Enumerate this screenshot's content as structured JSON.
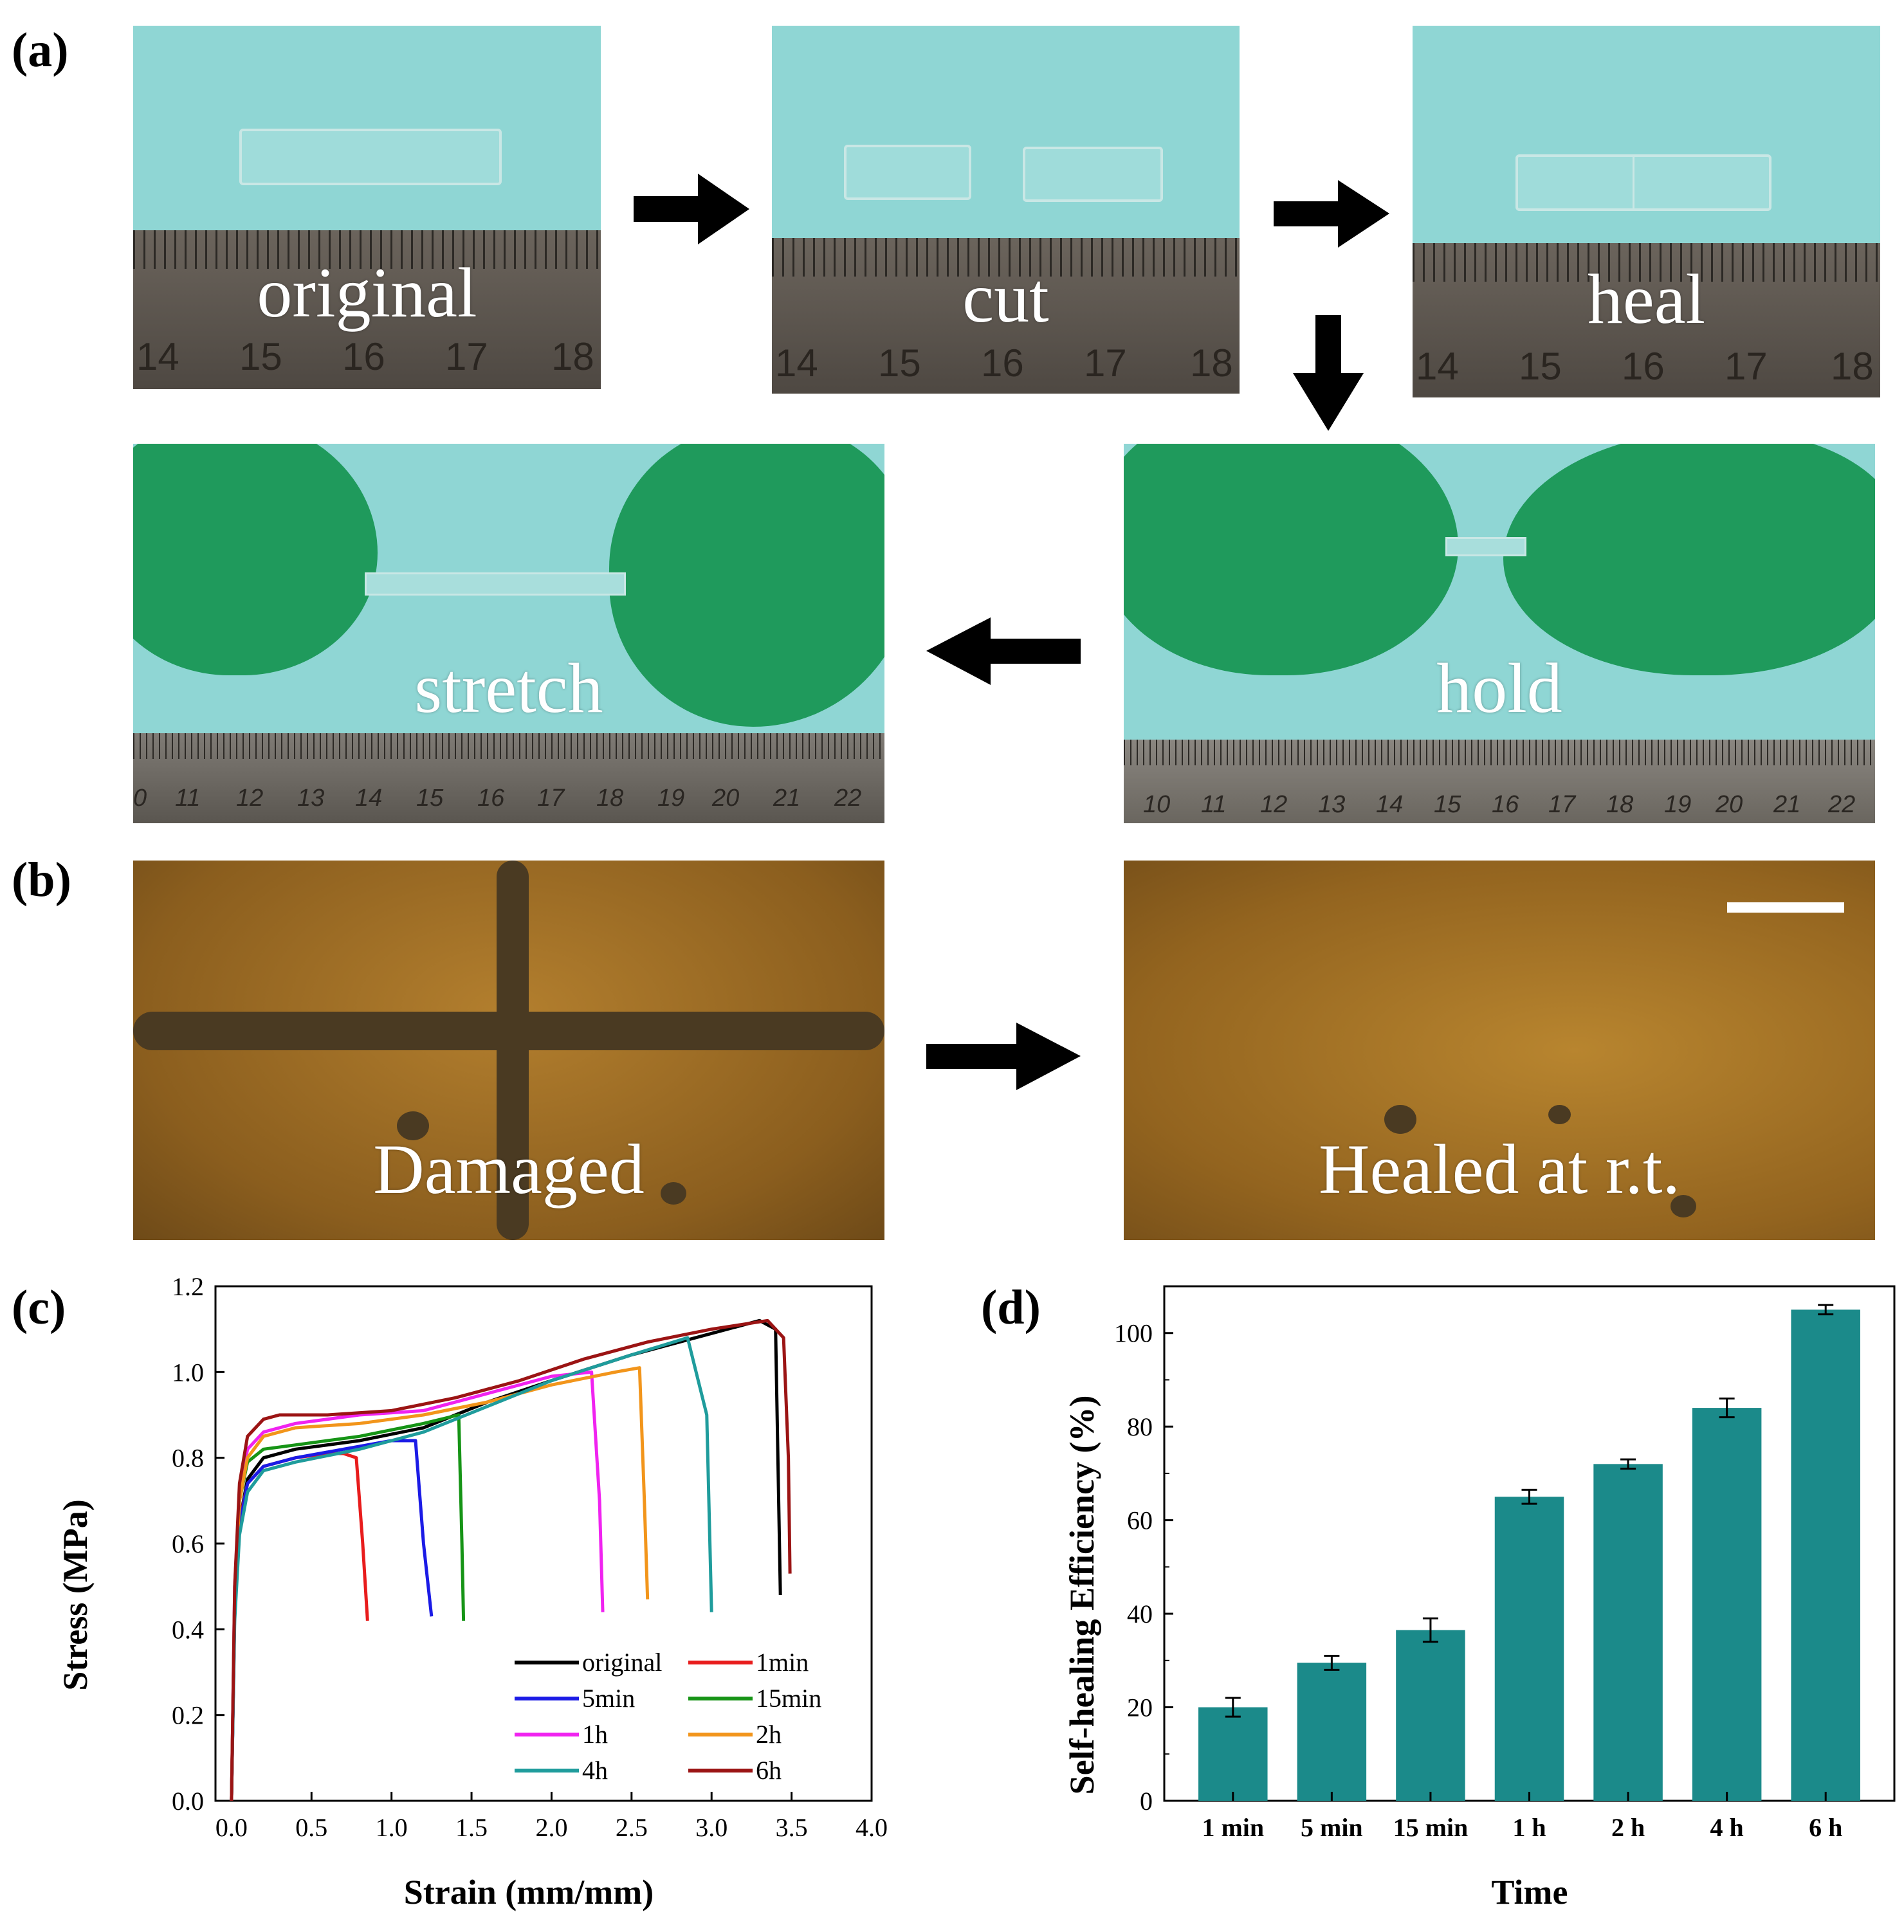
{
  "panel_labels": {
    "a": "(a)",
    "b": "(b)",
    "c": "(c)",
    "d": "(d)"
  },
  "panel_a": {
    "steps": [
      {
        "caption": "original",
        "ruler_numbers": [
          "14",
          "15",
          "16",
          "17",
          "18"
        ]
      },
      {
        "caption": "cut",
        "ruler_numbers": [
          "14",
          "15",
          "16",
          "17",
          "18"
        ]
      },
      {
        "caption": "heal",
        "ruler_numbers": [
          "14",
          "15",
          "16",
          "17",
          "18"
        ]
      },
      {
        "caption": "hold",
        "ruler_numbers": [
          "10",
          "11",
          "12",
          "13",
          "14",
          "15",
          "16",
          "17",
          "18",
          "19",
          "20",
          "21",
          "22"
        ]
      },
      {
        "caption": "stretch",
        "ruler_numbers": [
          "0",
          "11",
          "12",
          "13",
          "14",
          "15",
          "16",
          "17",
          "18",
          "19",
          "20",
          "21",
          "22"
        ]
      }
    ],
    "colors": {
      "background": "#8fd6d4",
      "glove": "#1f9a5c",
      "ruler": "#5c554d"
    }
  },
  "panel_b": {
    "images": [
      {
        "caption": "Damaged"
      },
      {
        "caption": "Healed at r.t."
      }
    ],
    "colors": {
      "background": "#9c6a22"
    }
  },
  "chart_data": [
    {
      "type": "line",
      "panel": "(c)",
      "xlabel": "Strain (mm/mm)",
      "ylabel": "Stress (MPa)",
      "xlim": [
        -0.1,
        4.0
      ],
      "ylim": [
        0.0,
        1.2
      ],
      "xticks": [
        "0.0",
        "0.5",
        "1.0",
        "1.5",
        "2.0",
        "2.5",
        "3.0",
        "3.5",
        "4.0"
      ],
      "yticks": [
        "0.0",
        "0.2",
        "0.4",
        "0.6",
        "0.8",
        "1.0",
        "1.2"
      ],
      "legend_position": "bottom-right",
      "series": [
        {
          "name": "original",
          "color": "#000000",
          "x": [
            0,
            0.02,
            0.05,
            0.1,
            0.2,
            0.4,
            0.8,
            1.2,
            1.6,
            2.0,
            2.5,
            3.0,
            3.3,
            3.4,
            3.43
          ],
          "y": [
            0,
            0.45,
            0.65,
            0.75,
            0.8,
            0.82,
            0.84,
            0.87,
            0.93,
            0.98,
            1.04,
            1.09,
            1.12,
            1.1,
            0.48
          ]
        },
        {
          "name": "1min",
          "color": "#e81c1c",
          "x": [
            0,
            0.02,
            0.05,
            0.1,
            0.2,
            0.4,
            0.6,
            0.7,
            0.78,
            0.82,
            0.85
          ],
          "y": [
            0,
            0.45,
            0.65,
            0.74,
            0.78,
            0.8,
            0.81,
            0.81,
            0.8,
            0.6,
            0.42
          ]
        },
        {
          "name": "5min",
          "color": "#1b1be6",
          "x": [
            0,
            0.02,
            0.05,
            0.1,
            0.2,
            0.4,
            0.7,
            1.0,
            1.15,
            1.2,
            1.25
          ],
          "y": [
            0,
            0.44,
            0.64,
            0.74,
            0.78,
            0.8,
            0.82,
            0.84,
            0.84,
            0.6,
            0.43
          ]
        },
        {
          "name": "15min",
          "color": "#169416",
          "x": [
            0,
            0.02,
            0.05,
            0.1,
            0.2,
            0.4,
            0.8,
            1.2,
            1.42,
            1.44,
            1.45
          ],
          "y": [
            0,
            0.48,
            0.7,
            0.79,
            0.82,
            0.83,
            0.85,
            0.88,
            0.9,
            0.6,
            0.42
          ]
        },
        {
          "name": "1h",
          "color": "#f023f0",
          "x": [
            0,
            0.02,
            0.05,
            0.1,
            0.2,
            0.4,
            0.8,
            1.2,
            1.6,
            2.0,
            2.25,
            2.3,
            2.32
          ],
          "y": [
            0,
            0.5,
            0.72,
            0.82,
            0.86,
            0.88,
            0.9,
            0.91,
            0.95,
            0.99,
            1.0,
            0.7,
            0.44
          ]
        },
        {
          "name": "2h",
          "color": "#f2951b",
          "x": [
            0,
            0.02,
            0.05,
            0.1,
            0.2,
            0.4,
            0.8,
            1.2,
            1.6,
            2.0,
            2.4,
            2.55,
            2.58,
            2.6
          ],
          "y": [
            0,
            0.48,
            0.7,
            0.8,
            0.85,
            0.87,
            0.88,
            0.9,
            0.93,
            0.97,
            1.0,
            1.01,
            0.7,
            0.47
          ]
        },
        {
          "name": "4h",
          "color": "#1f9c9c",
          "x": [
            0,
            0.02,
            0.05,
            0.1,
            0.2,
            0.4,
            0.8,
            1.2,
            1.6,
            2.0,
            2.5,
            2.85,
            2.97,
            3.0
          ],
          "y": [
            0,
            0.42,
            0.62,
            0.72,
            0.77,
            0.79,
            0.82,
            0.86,
            0.92,
            0.98,
            1.04,
            1.08,
            0.9,
            0.44
          ]
        },
        {
          "name": "6h",
          "color": "#9b1414",
          "x": [
            0,
            0.02,
            0.05,
            0.1,
            0.2,
            0.3,
            0.6,
            1.0,
            1.4,
            1.8,
            2.2,
            2.6,
            3.0,
            3.35,
            3.45,
            3.48,
            3.49
          ],
          "y": [
            0,
            0.5,
            0.74,
            0.85,
            0.89,
            0.9,
            0.9,
            0.91,
            0.94,
            0.98,
            1.03,
            1.07,
            1.1,
            1.12,
            1.08,
            0.8,
            0.53
          ]
        }
      ]
    },
    {
      "type": "bar",
      "panel": "(d)",
      "xlabel": "Time",
      "ylabel": "Self-healing Efficiency (%)",
      "ylim": [
        0,
        110
      ],
      "yticks": [
        "0",
        "20",
        "40",
        "60",
        "80",
        "100"
      ],
      "categories": [
        "1 min",
        "5 min",
        "15 min",
        "1 h",
        "2 h",
        "4 h",
        "6 h"
      ],
      "values": [
        20,
        29.5,
        36.5,
        65,
        72,
        84,
        105
      ],
      "errors": [
        2,
        1.5,
        2.5,
        1.5,
        1,
        2,
        1
      ],
      "bar_color": "#1b8a8a"
    }
  ]
}
